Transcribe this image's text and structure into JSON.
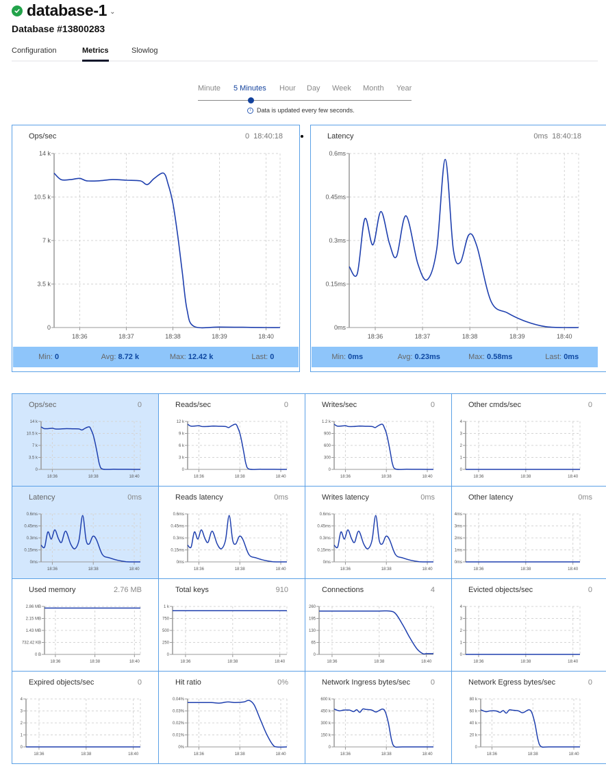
{
  "header": {
    "status": "healthy",
    "status_icon": "check-circle-icon",
    "db_name": "database-1",
    "db_id": "Database #13800283"
  },
  "tabs": [
    {
      "label": "Configuration",
      "active": false
    },
    {
      "label": "Metrics",
      "active": true
    },
    {
      "label": "Slowlog",
      "active": false
    }
  ],
  "range": {
    "options": [
      "Minute",
      "5 Minutes",
      "Hour",
      "Day",
      "Week",
      "Month",
      "Year"
    ],
    "selected": "5 Minutes",
    "note": "Data is updated every few seconds."
  },
  "colors": {
    "line": "#1e3fae",
    "border": "#5aa0e6",
    "stats_bg": "#8ec5fa",
    "highlight": "#d3e7fd",
    "accent": "#12419c"
  },
  "big_charts": [
    {
      "title": "Ops/sec",
      "current": "0",
      "time": "18:40:18",
      "stats": {
        "min_label": "Min:",
        "min": "0",
        "avg_label": "Avg:",
        "avg": "8.72 k",
        "max_label": "Max:",
        "max": "12.42 k",
        "last_label": "Last:",
        "last": "0"
      }
    },
    {
      "title": "Latency",
      "current": "0ms",
      "time": "18:40:18",
      "stats": {
        "min_label": "Min:",
        "min": "0ms",
        "avg_label": "Avg:",
        "avg": "0.23ms",
        "max_label": "Max:",
        "max": "0.58ms",
        "last_label": "Last:",
        "last": "0ms"
      }
    }
  ],
  "small_charts": [
    {
      "title": "Ops/sec",
      "value": "0",
      "highlight": true
    },
    {
      "title": "Reads/sec",
      "value": "0",
      "highlight": false
    },
    {
      "title": "Writes/sec",
      "value": "0",
      "highlight": false
    },
    {
      "title": "Other cmds/sec",
      "value": "0",
      "highlight": false
    },
    {
      "title": "Latency",
      "value": "0ms",
      "highlight": true
    },
    {
      "title": "Reads latency",
      "value": "0ms",
      "highlight": false
    },
    {
      "title": "Writes latency",
      "value": "0ms",
      "highlight": false
    },
    {
      "title": "Other latency",
      "value": "0ms",
      "highlight": false
    },
    {
      "title": "Used memory",
      "value": "2.76 MB",
      "highlight": false
    },
    {
      "title": "Total keys",
      "value": "910",
      "highlight": false
    },
    {
      "title": "Connections",
      "value": "4",
      "highlight": false
    },
    {
      "title": "Evicted objects/sec",
      "value": "0",
      "highlight": false
    },
    {
      "title": "Expired objects/sec",
      "value": "0",
      "highlight": false
    },
    {
      "title": "Hit ratio",
      "value": "0%",
      "highlight": false
    },
    {
      "title": "Network Ingress bytes/sec",
      "value": "0",
      "highlight": false
    },
    {
      "title": "Network Egress bytes/sec",
      "value": "0",
      "highlight": false
    }
  ],
  "chart_data": [
    {
      "type": "line",
      "title": "Ops/sec (large)",
      "xlabel": "",
      "ylabel": "",
      "x_range_minutes": [
        35.45,
        40.3
      ],
      "x_ticks": [
        36,
        37,
        38,
        39,
        40
      ],
      "x_tick_labels": [
        "18:36",
        "18:37",
        "18:38",
        "18:39",
        "18:40"
      ],
      "ylim": [
        0,
        14000
      ],
      "y_ticks": [
        0,
        3500,
        7000,
        10500,
        14000
      ],
      "y_tick_labels": [
        "0",
        "3.5 k",
        "7 k",
        "10.5 k",
        "14 k"
      ],
      "x": [
        35.45,
        35.6,
        35.8,
        36.0,
        36.15,
        36.4,
        36.7,
        37.0,
        37.3,
        37.45,
        37.6,
        37.8,
        37.9,
        38.0,
        38.1,
        38.2,
        38.3,
        38.45,
        39.0,
        39.5,
        40.0,
        40.3
      ],
      "y": [
        12420,
        11900,
        11900,
        12000,
        11800,
        11800,
        11900,
        11850,
        11800,
        11500,
        12000,
        12420,
        11500,
        10000,
        7500,
        4500,
        1500,
        100,
        40,
        20,
        0,
        0
      ]
    },
    {
      "type": "line",
      "title": "Latency (large)",
      "xlabel": "",
      "ylabel": "",
      "x_range_minutes": [
        35.45,
        40.3
      ],
      "x_ticks": [
        36,
        37,
        38,
        39,
        40
      ],
      "x_tick_labels": [
        "18:36",
        "18:37",
        "18:38",
        "18:39",
        "18:40"
      ],
      "ylim": [
        0,
        0.6
      ],
      "y_ticks": [
        0,
        0.15,
        0.3,
        0.45,
        0.6
      ],
      "y_tick_labels": [
        "0ms",
        "0.15ms",
        "0.3ms",
        "0.45ms",
        "0.6ms"
      ],
      "x": [
        35.45,
        35.62,
        35.78,
        35.95,
        36.12,
        36.3,
        36.45,
        36.65,
        36.9,
        37.1,
        37.3,
        37.48,
        37.65,
        37.8,
        37.98,
        38.15,
        38.45,
        38.8,
        39.2,
        39.6,
        40.0,
        40.3
      ],
      "y": [
        0.21,
        0.185,
        0.375,
        0.285,
        0.4,
        0.29,
        0.245,
        0.385,
        0.22,
        0.165,
        0.27,
        0.58,
        0.27,
        0.225,
        0.32,
        0.28,
        0.09,
        0.05,
        0.02,
        0.003,
        0,
        0
      ]
    },
    {
      "type": "line",
      "title": "Ops/sec",
      "ylim": [
        0,
        14000
      ],
      "y_tick_labels": [
        "0",
        "3.5 k",
        "7 k",
        "10.5 k",
        "14 k"
      ],
      "x_tick_labels": [
        "18:36",
        "18:38",
        "18:40"
      ],
      "shape": "ops"
    },
    {
      "type": "line",
      "title": "Reads/sec",
      "ylim": [
        0,
        12000
      ],
      "y_tick_labels": [
        "0",
        "3 k",
        "6 k",
        "9 k",
        "12 k"
      ],
      "x_tick_labels": [
        "18:36",
        "18:38",
        "18:40"
      ],
      "shape": "ops",
      "scale": 0.91
    },
    {
      "type": "line",
      "title": "Writes/sec",
      "ylim": [
        0,
        1200
      ],
      "y_tick_labels": [
        "0",
        "300",
        "600",
        "900",
        "1.2 k"
      ],
      "x_tick_labels": [
        "18:36",
        "18:38",
        "18:40"
      ],
      "shape": "ops",
      "scale": 0.091
    },
    {
      "type": "line",
      "title": "Other cmds/sec",
      "ylim": [
        0,
        4
      ],
      "y_tick_labels": [
        "0",
        "1",
        "2",
        "3",
        "4"
      ],
      "x_tick_labels": [
        "18:36",
        "18:38",
        "18:40"
      ],
      "shape": "zero"
    },
    {
      "type": "line",
      "title": "Latency",
      "ylim": [
        0,
        0.6
      ],
      "y_tick_labels": [
        "0ms",
        "0.15ms",
        "0.3ms",
        "0.45ms",
        "0.6ms"
      ],
      "x_tick_labels": [
        "18:36",
        "18:38",
        "18:40"
      ],
      "shape": "lat"
    },
    {
      "type": "line",
      "title": "Reads latency",
      "ylim": [
        0,
        0.6
      ],
      "y_tick_labels": [
        "0ms",
        "0.15ms",
        "0.3ms",
        "0.45ms",
        "0.6ms"
      ],
      "x_tick_labels": [
        "18:36",
        "18:38",
        "18:40"
      ],
      "shape": "lat"
    },
    {
      "type": "line",
      "title": "Writes latency",
      "ylim": [
        0,
        0.6
      ],
      "y_tick_labels": [
        "0ms",
        "0.15ms",
        "0.3ms",
        "0.45ms",
        "0.6ms"
      ],
      "x_tick_labels": [
        "18:36",
        "18:38",
        "18:40"
      ],
      "shape": "lat"
    },
    {
      "type": "line",
      "title": "Other latency",
      "ylim": [
        0,
        4
      ],
      "y_tick_labels": [
        "0ms",
        "1ms",
        "2ms",
        "3ms",
        "4ms"
      ],
      "x_tick_labels": [
        "18:36",
        "18:38",
        "18:40"
      ],
      "shape": "zero"
    },
    {
      "type": "line",
      "title": "Used memory",
      "ylim": [
        0,
        2.86
      ],
      "y_tick_labels": [
        "0 B",
        "732.42 KB",
        "1.43 MB",
        "2.15 MB",
        "2.86 MB"
      ],
      "x_tick_labels": [
        "18:36",
        "18:38",
        "18:40"
      ],
      "shape": "flat",
      "level": 2.76
    },
    {
      "type": "line",
      "title": "Total keys",
      "ylim": [
        0,
        1000
      ],
      "y_tick_labels": [
        "0",
        "250",
        "500",
        "750",
        "1 k"
      ],
      "x_tick_labels": [
        "18:36",
        "18:38",
        "18:40"
      ],
      "shape": "flat",
      "level": 910
    },
    {
      "type": "line",
      "title": "Connections",
      "ylim": [
        0,
        260
      ],
      "y_tick_labels": [
        "0",
        "65",
        "130",
        "195",
        "260"
      ],
      "x_tick_labels": [
        "18:36",
        "18:38",
        "18:40"
      ],
      "shape": "conn"
    },
    {
      "type": "line",
      "title": "Evicted objects/sec",
      "ylim": [
        0,
        4
      ],
      "y_tick_labels": [
        "0",
        "1",
        "2",
        "3",
        "4"
      ],
      "x_tick_labels": [
        "18:36",
        "18:38",
        "18:40"
      ],
      "shape": "zero"
    },
    {
      "type": "line",
      "title": "Expired objects/sec",
      "ylim": [
        0,
        4
      ],
      "y_tick_labels": [
        "0",
        "1",
        "2",
        "3",
        "4"
      ],
      "x_tick_labels": [
        "18:36",
        "18:38",
        "18:40"
      ],
      "shape": "zero"
    },
    {
      "type": "line",
      "title": "Hit ratio",
      "ylim": [
        0,
        0.04
      ],
      "y_tick_labels": [
        "0%",
        "0.01%",
        "0.02%",
        "0.03%",
        "0.04%"
      ],
      "x_tick_labels": [
        "18:36",
        "18:38",
        "18:40"
      ],
      "shape": "hit"
    },
    {
      "type": "line",
      "title": "Network Ingress bytes/sec",
      "ylim": [
        0,
        600000
      ],
      "y_tick_labels": [
        "0",
        "150 k",
        "300 k",
        "450 k",
        "600 k"
      ],
      "x_tick_labels": [
        "18:36",
        "18:38",
        "18:40"
      ],
      "shape": "net",
      "scale": 460000
    },
    {
      "type": "line",
      "title": "Network Egress bytes/sec",
      "ylim": [
        0,
        80000
      ],
      "y_tick_labels": [
        "0",
        "20 k",
        "40 k",
        "60 k",
        "80 k"
      ],
      "x_tick_labels": [
        "18:36",
        "18:38",
        "18:40"
      ],
      "shape": "net",
      "scale": 60000
    }
  ]
}
